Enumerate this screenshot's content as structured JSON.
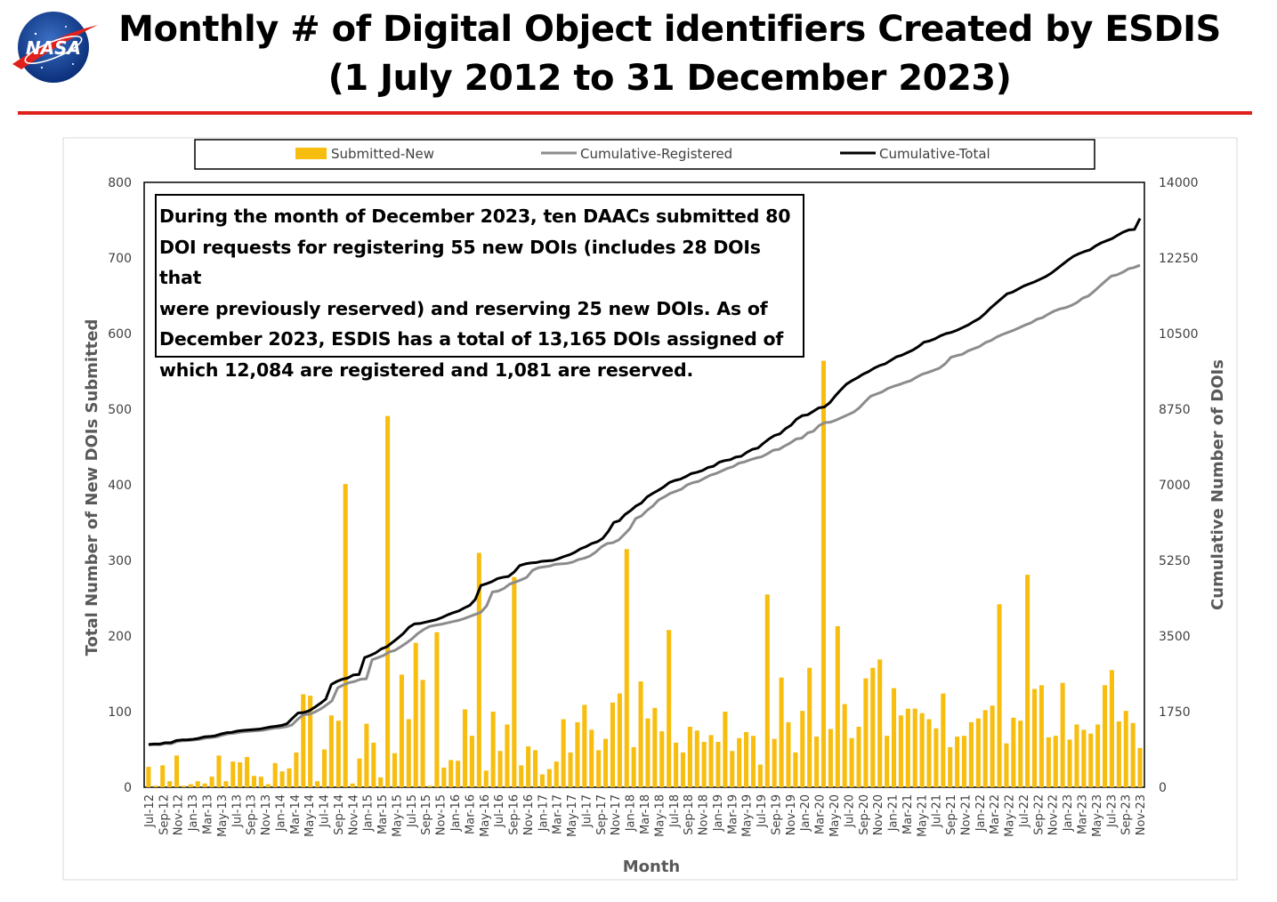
{
  "header": {
    "title_line1": "Monthly # of Digital Object identifiers Created by ESDIS",
    "title_line2": "(1 July 2012 to 31 December 2023)",
    "logo_text": "NASA"
  },
  "annotation_lines": [
    "During the month of December 2023, ten DAACs submitted 80",
    "DOI requests for registering 55 new DOIs (includes 28 DOIs that",
    "were previously reserved) and reserving 25 new DOIs.  As of",
    "December 2023, ESDIS has a total of 13,165 DOIs assigned of",
    "which 12,084 are registered and 1,081 are reserved."
  ],
  "colors": {
    "bars": "#f7bd0f",
    "registered": "#8c8c8c",
    "total": "#000000",
    "title_rule": "#e0201b"
  },
  "chart_data": {
    "type": "bar+line",
    "xlabel": "Month",
    "ylabel": "Total Number of New DOIs Submitted",
    "y2label": "Cumulative Number of DOIs",
    "ylim": [
      0,
      800
    ],
    "y2lim": [
      0,
      14000
    ],
    "yticks": [
      "0",
      "100",
      "200",
      "300",
      "400",
      "500",
      "600",
      "700",
      "800"
    ],
    "y2ticks": [
      "0",
      "1750",
      "3500",
      "5250",
      "7000",
      "8750",
      "10500",
      "12250",
      "14000"
    ],
    "legend_position": "top",
    "x_labels": [
      "Jul-12",
      "Sep-12",
      "Nov-12",
      "Jan-13",
      "Mar-13",
      "May-13",
      "Jul-13",
      "Sep-13",
      "Nov-13",
      "Jan-14",
      "Mar-14",
      "May-14",
      "Jul-14",
      "Sep-14",
      "Nov-14",
      "Jan-15",
      "Mar-15",
      "May-15",
      "Jul-15",
      "Sep-15",
      "Nov-15",
      "Jan-16",
      "Mar-16",
      "May-16",
      "Jul-16",
      "Sep-16",
      "Nov-16",
      "Jan-17",
      "Mar-17",
      "May-17",
      "Jul-17",
      "Sep-17",
      "Nov-17",
      "Jan-18",
      "Mar-18",
      "May-18",
      "Jul-18",
      "Sep-18",
      "Nov-18",
      "Jan-19",
      "Mar-19",
      "May-19",
      "Jul-19",
      "Sep-19",
      "Nov-19",
      "Jan-20",
      "Mar-20",
      "May-20",
      "Jul-20",
      "Sep-20",
      "Nov-20",
      "Jan-21",
      "Mar-21",
      "May-21",
      "Jul-21",
      "Sep-21",
      "Nov-21",
      "Jan-22",
      "Mar-22",
      "May-22",
      "Jul-22",
      "Sep-22",
      "Nov-22",
      "Jan-23",
      "Mar-23",
      "May-23",
      "Jul-23",
      "Sep-23",
      "Nov-23"
    ],
    "series": [
      {
        "name": "Submitted-New",
        "axis": "left",
        "type": "bar",
        "values": [
          27,
          2,
          29,
          8,
          42,
          2,
          4,
          8,
          5,
          14,
          42,
          8,
          34,
          33,
          40,
          15,
          14,
          4,
          32,
          21,
          25,
          46,
          123,
          121,
          8,
          50,
          95,
          88,
          401,
          5,
          38,
          84,
          59,
          13,
          491,
          45,
          149,
          90,
          191,
          142,
          2,
          205,
          26,
          36,
          35,
          103,
          68,
          310,
          22,
          100,
          48,
          83,
          278,
          29,
          54,
          49,
          17,
          24,
          34,
          90,
          46,
          86,
          109,
          76,
          49,
          64,
          112,
          124,
          315,
          53,
          140,
          91,
          105,
          74,
          208,
          59,
          46,
          80,
          75,
          60,
          69,
          60,
          100,
          48,
          65,
          73,
          68,
          30,
          255,
          64,
          145,
          86,
          46,
          101,
          158,
          67,
          564,
          77,
          213,
          110,
          65,
          80,
          144,
          158,
          169,
          68,
          131,
          95,
          104,
          104,
          98,
          90,
          78,
          124,
          53,
          67,
          68,
          86,
          91,
          102,
          108,
          242,
          58,
          92,
          88,
          281,
          130,
          135,
          66,
          68,
          138,
          63,
          83,
          76,
          71,
          83,
          135,
          155,
          87,
          101,
          85,
          52
        ]
      },
      {
        "name": "Cumulative-Registered",
        "axis": "right",
        "type": "line",
        "values": [
          980,
          985,
          985,
          1015,
          1010,
          1060,
          1075,
          1080,
          1095,
          1110,
          1140,
          1150,
          1170,
          1210,
          1240,
          1250,
          1275,
          1290,
          1300,
          1310,
          1320,
          1345,
          1370,
          1380,
          1400,
          1440,
          1570,
          1680,
          1690,
          1740,
          1810,
          1900,
          2000,
          2300,
          2370,
          2420,
          2450,
          2500,
          2510,
          2950,
          3000,
          3050,
          3130,
          3170,
          3250,
          3340,
          3440,
          3560,
          3650,
          3720,
          3750,
          3770,
          3800,
          3830,
          3860,
          3900,
          3950,
          4000,
          4050,
          4200,
          4520,
          4540,
          4600,
          4700,
          4750,
          4800,
          4860,
          5020,
          5080,
          5100,
          5120,
          5160,
          5170,
          5180,
          5210,
          5270,
          5300,
          5350,
          5440,
          5560,
          5640,
          5660,
          5720,
          5850,
          5990,
          6220,
          6280,
          6410,
          6510,
          6650,
          6720,
          6800,
          6850,
          6900,
          7000,
          7050,
          7080,
          7150,
          7220,
          7260,
          7320,
          7380,
          7420,
          7500,
          7530,
          7580,
          7620,
          7650,
          7720,
          7800,
          7820,
          7900,
          7970,
          8060,
          8080,
          8200,
          8240,
          8370,
          8440,
          8450,
          8500,
          8560,
          8620,
          8680,
          8780,
          8920,
          9050,
          9100,
          9150,
          9230,
          9280,
          9320,
          9370,
          9410,
          9490,
          9560,
          9600,
          9650,
          9700,
          9800,
          9950,
          9990,
          10020,
          10100,
          10150,
          10200,
          10290,
          10340,
          10420,
          10480,
          10530,
          10580,
          10640,
          10700,
          10750,
          10830,
          10870,
          10950,
          11020,
          11070,
          11100,
          11150,
          11220,
          11320,
          11370,
          11480,
          11600,
          11720,
          11830,
          11860,
          11920,
          12000,
          12030,
          12084
        ]
      },
      {
        "name": "Cumulative-Total",
        "axis": "right",
        "type": "line",
        "values": [
          990,
          1000,
          1000,
          1030,
          1030,
          1080,
          1095,
          1100,
          1110,
          1130,
          1165,
          1175,
          1190,
          1230,
          1260,
          1270,
          1300,
          1315,
          1325,
          1335,
          1345,
          1370,
          1395,
          1410,
          1430,
          1470,
          1600,
          1720,
          1730,
          1770,
          1850,
          1940,
          2040,
          2380,
          2450,
          2500,
          2530,
          2600,
          2610,
          3000,
          3050,
          3110,
          3200,
          3250,
          3350,
          3450,
          3560,
          3700,
          3780,
          3790,
          3820,
          3850,
          3880,
          3930,
          3990,
          4040,
          4080,
          4150,
          4210,
          4350,
          4670,
          4710,
          4760,
          4830,
          4860,
          4880,
          4980,
          5130,
          5170,
          5190,
          5200,
          5230,
          5240,
          5250,
          5290,
          5340,
          5380,
          5440,
          5520,
          5570,
          5640,
          5680,
          5760,
          5920,
          6130,
          6170,
          6310,
          6400,
          6510,
          6580,
          6720,
          6800,
          6870,
          6950,
          7050,
          7100,
          7130,
          7190,
          7260,
          7290,
          7330,
          7400,
          7430,
          7520,
          7560,
          7580,
          7640,
          7660,
          7750,
          7820,
          7850,
          7960,
          8060,
          8140,
          8180,
          8300,
          8380,
          8520,
          8600,
          8620,
          8700,
          8780,
          8800,
          8900,
          9060,
          9200,
          9330,
          9410,
          9480,
          9560,
          9620,
          9700,
          9760,
          9800,
          9880,
          9960,
          10000,
          10060,
          10120,
          10200,
          10300,
          10330,
          10380,
          10450,
          10500,
          10530,
          10580,
          10640,
          10700,
          10780,
          10850,
          10960,
          11090,
          11200,
          11310,
          11420,
          11460,
          11530,
          11600,
          11650,
          11700,
          11760,
          11820,
          11900,
          12000,
          12100,
          12200,
          12290,
          12350,
          12400,
          12440,
          12530,
          12600,
          12650,
          12700,
          12780,
          12850,
          12900,
          12910,
          13165
        ]
      }
    ]
  }
}
